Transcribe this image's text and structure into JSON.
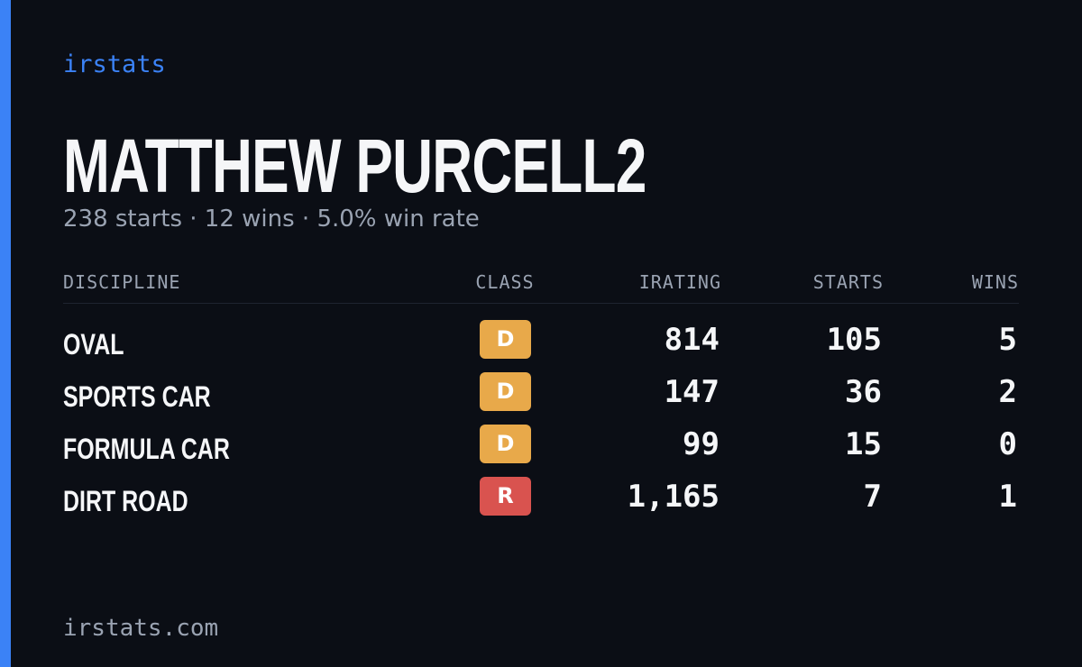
{
  "brand": "irstats",
  "name": "MATTHEW PURCELL2",
  "summary": "238 starts · 12 wins · 5.0% win rate",
  "table": {
    "headers": [
      "DISCIPLINE",
      "CLASS",
      "IRATING",
      "STARTS",
      "WINS"
    ],
    "rows": [
      [
        "OVAL",
        "D",
        "814",
        "105",
        "5"
      ],
      [
        "SPORTS CAR",
        "D",
        "147",
        "36",
        "2"
      ],
      [
        "FORMULA CAR",
        "D",
        "99",
        "15",
        "0"
      ],
      [
        "DIRT ROAD",
        "R",
        "1,165",
        "7",
        "1"
      ]
    ]
  },
  "footer": "irstats.com"
}
